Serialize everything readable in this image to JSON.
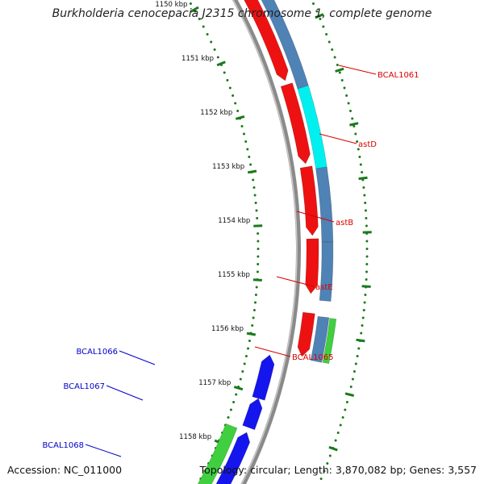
{
  "title": "Burkholderia cenocepacia J2315 chromosome 1, complete genome",
  "footer": {
    "accession": "Accession: NC_011000",
    "summary": "Topology: circular; Length: 3,870,082 bp; Genes: 3,557"
  },
  "colors": {
    "backbone": "#8a8a8a",
    "tick": "#1a7a1a",
    "forward_gene": "#ee1111",
    "reverse_gene": "#1515ee",
    "steelblue_track": "#4f82b5",
    "cyan_track": "#00f0f0",
    "green_track": "#3fcf3f",
    "label_red": "#dd0000",
    "label_blue": "#0000cc"
  },
  "scale_labels": [
    {
      "text": "1150 kbp",
      "kbp": 1150
    },
    {
      "text": "1151 kbp",
      "kbp": 1151
    },
    {
      "text": "1152 kbp",
      "kbp": 1152
    },
    {
      "text": "1153 kbp",
      "kbp": 1153
    },
    {
      "text": "1154 kbp",
      "kbp": 1154
    },
    {
      "text": "1155 kbp",
      "kbp": 1155
    },
    {
      "text": "1156 kbp",
      "kbp": 1156
    },
    {
      "text": "1157 kbp",
      "kbp": 1157
    },
    {
      "text": "1158 kbp",
      "kbp": 1158
    }
  ],
  "genes": [
    {
      "name": "BCAL1061",
      "strand": "forward"
    },
    {
      "name": "astD",
      "strand": "forward"
    },
    {
      "name": "astB",
      "strand": "forward"
    },
    {
      "name": "astE",
      "strand": "forward"
    },
    {
      "name": "BCAL1065",
      "strand": "forward"
    },
    {
      "name": "BCAL1066",
      "strand": "reverse"
    },
    {
      "name": "BCAL1067",
      "strand": "reverse"
    },
    {
      "name": "BCAL1068",
      "strand": "reverse"
    }
  ]
}
